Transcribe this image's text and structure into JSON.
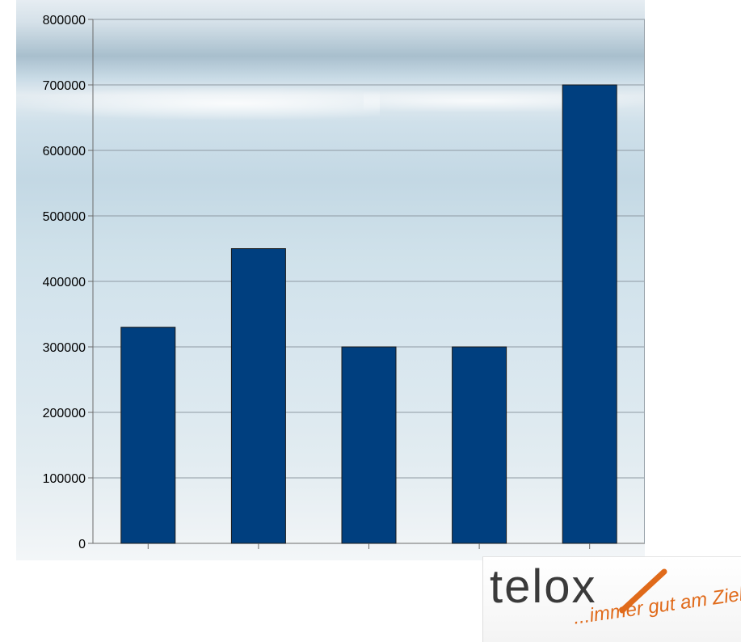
{
  "chart_data": {
    "type": "bar",
    "title": "",
    "xlabel": "",
    "ylabel": "",
    "categories": [
      "",
      "",
      "",
      "",
      ""
    ],
    "values": [
      330000,
      450000,
      300000,
      300000,
      700000
    ],
    "ylim": [
      0,
      800000
    ],
    "yticks": [
      "0",
      "100000",
      "200000",
      "300000",
      "400000",
      "500000",
      "600000",
      "700000",
      "800000"
    ],
    "grid": true,
    "legend": "none",
    "bar_color": "#003f7f",
    "bar_edge_color": "#1a1a1a",
    "grid_color": "#8f9aa3"
  },
  "logo": {
    "word": "telo",
    "word_end": "x",
    "tagline": "...immer gut am Ziel",
    "accent_color": "#e06a1a"
  }
}
